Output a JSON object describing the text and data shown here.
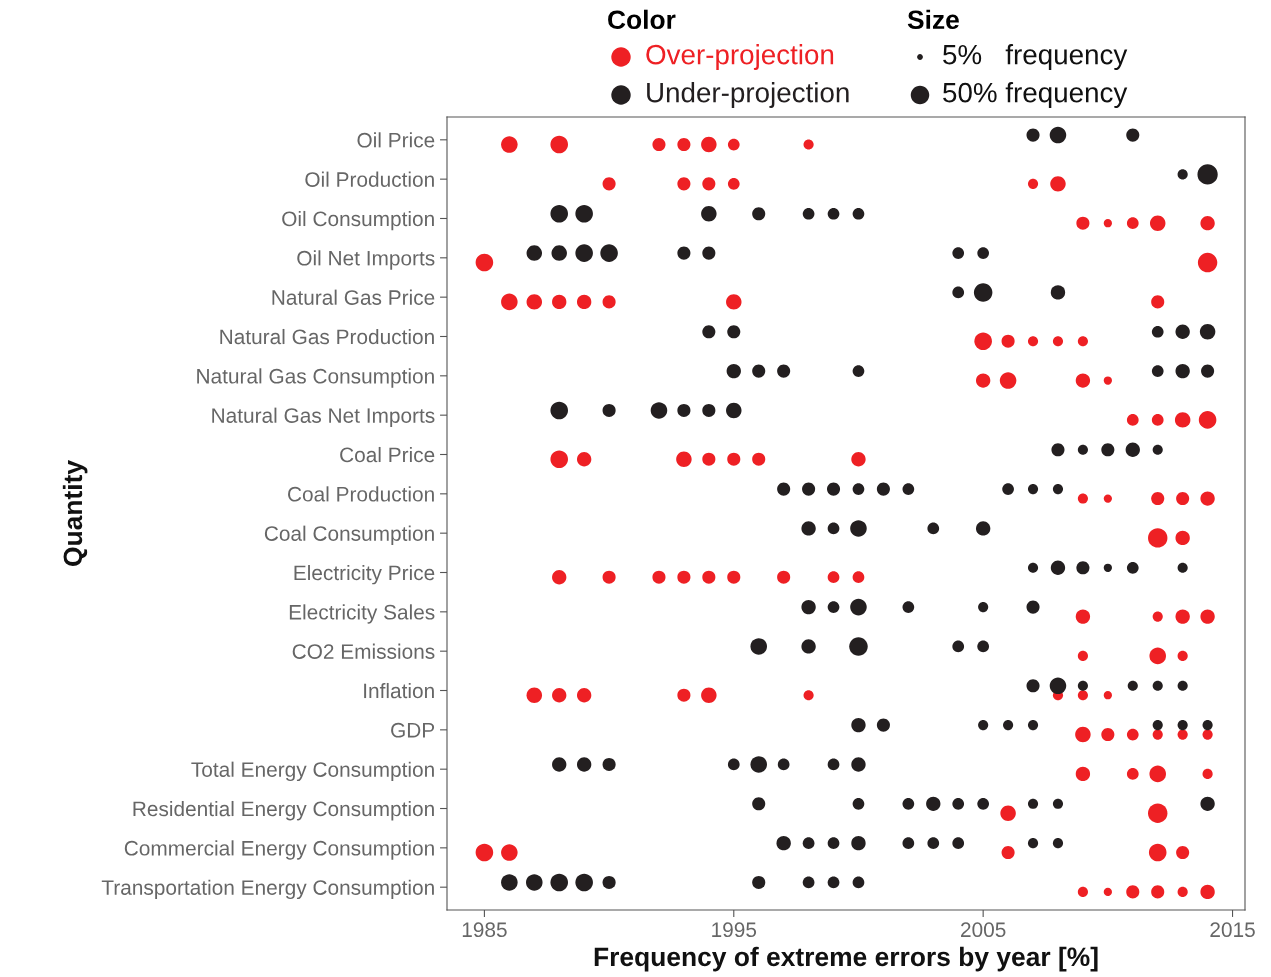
{
  "chart_data": {
    "type": "bubble",
    "xlabel": "Frequency of extreme errors by year [%]",
    "ylabel": "Quantity",
    "legend": "top",
    "legend_title": [
      "Color",
      "Size"
    ],
    "grid": false,
    "marker": "circle",
    "size_legend": [
      {
        "value": 5,
        "label": "5%   frequency"
      },
      {
        "value": 50,
        "label": "50% frequency"
      }
    ],
    "xlim": [
      1983.5,
      2015.5
    ],
    "xticks": [
      1985,
      1995,
      2005,
      2015
    ],
    "orientation": "horizontal",
    "categories": [
      "Oil Price",
      "Oil Production",
      "Oil Consumption",
      "Oil Net Imports",
      "Natural Gas Price",
      "Natural Gas Production",
      "Natural Gas Consumption",
      "Natural Gas Net Imports",
      "Coal Price",
      "Coal Production",
      "Coal Consumption",
      "Electricity Price",
      "Electricity Sales",
      "CO2 Emissions",
      "Inflation",
      "GDP",
      "Total Energy Consumption",
      "Residential Energy Consumption",
      "Commercial Energy Consumption",
      "Transportation Energy Consumption"
    ],
    "series": [
      {
        "name": "Over-projection",
        "color": "#ee2024",
        "values": [
          1986,
          1988,
          1992,
          1993,
          1994,
          1995,
          1998,
          1990,
          1993,
          1994,
          1995,
          2007,
          2008,
          2009,
          2010,
          2011,
          2012,
          2014,
          1985,
          2014,
          1986,
          1987,
          1988,
          1989,
          1990,
          1995,
          2012,
          2005,
          2006,
          2007,
          2008,
          2009,
          2005,
          2006,
          2009,
          2010,
          2011,
          2012,
          2013,
          2014,
          1988,
          1989,
          1993,
          1994,
          1995,
          1996,
          2000,
          2009,
          2010,
          2012,
          2013,
          2014,
          2012,
          2013,
          1988,
          1990,
          1992,
          1993,
          1994,
          1995,
          1997,
          1999,
          2000,
          2009,
          2012,
          2013,
          2014,
          2009,
          2012,
          2013,
          1987,
          1988,
          1989,
          1993,
          1994,
          1998,
          2008,
          2009,
          2010,
          2009,
          2010,
          2011,
          2012,
          2013,
          2014,
          2009,
          2011,
          2012,
          2014,
          2006,
          2012,
          1985,
          1986,
          2006,
          2012,
          2013,
          2009,
          2010,
          2011,
          2012,
          2013,
          2014
        ],
        "x": [
          "Oil Price",
          "Oil Price",
          "Oil Price",
          "Oil Price",
          "Oil Price",
          "Oil Price",
          "Oil Price",
          "Oil Production",
          "Oil Production",
          "Oil Production",
          "Oil Production",
          "Oil Production",
          "Oil Production",
          "Oil Consumption",
          "Oil Consumption",
          "Oil Consumption",
          "Oil Consumption",
          "Oil Consumption",
          "Oil Net Imports",
          "Oil Net Imports",
          "Natural Gas Price",
          "Natural Gas Price",
          "Natural Gas Price",
          "Natural Gas Price",
          "Natural Gas Price",
          "Natural Gas Price",
          "Natural Gas Price",
          "Natural Gas Production",
          "Natural Gas Production",
          "Natural Gas Production",
          "Natural Gas Production",
          "Natural Gas Production",
          "Natural Gas Consumption",
          "Natural Gas Consumption",
          "Natural Gas Consumption",
          "Natural Gas Consumption",
          "Natural Gas Net Imports",
          "Natural Gas Net Imports",
          "Natural Gas Net Imports",
          "Natural Gas Net Imports",
          "Coal Price",
          "Coal Price",
          "Coal Price",
          "Coal Price",
          "Coal Price",
          "Coal Price",
          "Coal Price",
          "Coal Production",
          "Coal Production",
          "Coal Production",
          "Coal Production",
          "Coal Production",
          "Coal Consumption",
          "Coal Consumption",
          "Electricity Price",
          "Electricity Price",
          "Electricity Price",
          "Electricity Price",
          "Electricity Price",
          "Electricity Price",
          "Electricity Price",
          "Electricity Price",
          "Electricity Price",
          "Electricity Sales",
          "Electricity Sales",
          "Electricity Sales",
          "Electricity Sales",
          "CO2 Emissions",
          "CO2 Emissions",
          "CO2 Emissions",
          "Inflation",
          "Inflation",
          "Inflation",
          "Inflation",
          "Inflation",
          "Inflation",
          "Inflation",
          "Inflation",
          "Inflation",
          "GDP",
          "GDP",
          "GDP",
          "GDP",
          "GDP",
          "GDP",
          "Total Energy Consumption",
          "Total Energy Consumption",
          "Total Energy Consumption",
          "Total Energy Consumption",
          "Residential Energy Consumption",
          "Residential Energy Consumption",
          "Commercial Energy Consumption",
          "Commercial Energy Consumption",
          "Commercial Energy Consumption",
          "Commercial Energy Consumption",
          "Commercial Energy Consumption",
          "Transportation Energy Consumption",
          "Transportation Energy Consumption",
          "Transportation Energy Consumption",
          "Transportation Energy Consumption",
          "Transportation Energy Consumption",
          "Transportation Energy Consumption"
        ],
        "sizes": [
          40,
          45,
          25,
          25,
          35,
          20,
          15,
          25,
          25,
          25,
          20,
          15,
          35,
          25,
          10,
          20,
          35,
          30,
          45,
          55,
          40,
          35,
          30,
          30,
          25,
          35,
          25,
          45,
          25,
          15,
          15,
          15,
          30,
          40,
          30,
          10,
          20,
          20,
          35,
          45,
          45,
          30,
          35,
          25,
          25,
          25,
          30,
          15,
          10,
          25,
          25,
          30,
          55,
          30,
          30,
          25,
          25,
          25,
          25,
          25,
          25,
          20,
          20,
          30,
          15,
          30,
          30,
          15,
          40,
          15,
          35,
          30,
          30,
          25,
          35,
          15,
          15,
          15,
          10,
          35,
          25,
          20,
          15,
          15,
          15,
          30,
          20,
          40,
          15,
          35,
          55,
          45,
          40,
          25,
          45,
          25,
          15,
          10,
          25,
          25,
          15,
          30
        ]
      },
      {
        "name": "Under-projection",
        "color": "#231f20",
        "values": [
          2007,
          2008,
          2011,
          2013,
          2014,
          1988,
          1989,
          1994,
          1996,
          1998,
          1999,
          2000,
          1987,
          1988,
          1989,
          1990,
          1993,
          1994,
          2004,
          2005,
          2004,
          2005,
          2008,
          1994,
          1995,
          2012,
          2013,
          2014,
          1995,
          1996,
          1997,
          2000,
          2012,
          2013,
          2014,
          1988,
          1990,
          1992,
          1993,
          1994,
          1995,
          2008,
          2009,
          2010,
          2011,
          2012,
          1997,
          1998,
          1999,
          2000,
          2001,
          2002,
          2006,
          2007,
          2008,
          1998,
          1999,
          2000,
          2003,
          2005,
          2007,
          2008,
          2009,
          2010,
          2011,
          2013,
          1998,
          1999,
          2000,
          2002,
          2005,
          2007,
          1996,
          1998,
          2000,
          2004,
          2005,
          2007,
          2008,
          2009,
          2011,
          2012,
          2013,
          2000,
          2001,
          2005,
          2006,
          2007,
          2012,
          2013,
          2014,
          1988,
          1989,
          1990,
          1995,
          1996,
          1997,
          1999,
          2000,
          1996,
          2000,
          2002,
          2003,
          2004,
          2005,
          2007,
          2008,
          2014,
          1997,
          1998,
          1999,
          2000,
          2002,
          2003,
          2004,
          2007,
          2008,
          1986,
          1987,
          1988,
          1989,
          1990,
          1996,
          1998,
          1999,
          2000
        ],
        "x": [
          "Oil Price",
          "Oil Price",
          "Oil Price",
          "Oil Production",
          "Oil Production",
          "Oil Consumption",
          "Oil Consumption",
          "Oil Consumption",
          "Oil Consumption",
          "Oil Consumption",
          "Oil Consumption",
          "Oil Consumption",
          "Oil Net Imports",
          "Oil Net Imports",
          "Oil Net Imports",
          "Oil Net Imports",
          "Oil Net Imports",
          "Oil Net Imports",
          "Oil Net Imports",
          "Oil Net Imports",
          "Natural Gas Price",
          "Natural Gas Price",
          "Natural Gas Price",
          "Natural Gas Production",
          "Natural Gas Production",
          "Natural Gas Production",
          "Natural Gas Production",
          "Natural Gas Production",
          "Natural Gas Consumption",
          "Natural Gas Consumption",
          "Natural Gas Consumption",
          "Natural Gas Consumption",
          "Natural Gas Consumption",
          "Natural Gas Consumption",
          "Natural Gas Consumption",
          "Natural Gas Net Imports",
          "Natural Gas Net Imports",
          "Natural Gas Net Imports",
          "Natural Gas Net Imports",
          "Natural Gas Net Imports",
          "Natural Gas Net Imports",
          "Coal Price",
          "Coal Price",
          "Coal Price",
          "Coal Price",
          "Coal Price",
          "Coal Production",
          "Coal Production",
          "Coal Production",
          "Coal Production",
          "Coal Production",
          "Coal Production",
          "Coal Production",
          "Coal Production",
          "Coal Production",
          "Coal Consumption",
          "Coal Consumption",
          "Coal Consumption",
          "Coal Consumption",
          "Coal Consumption",
          "Electricity Price",
          "Electricity Price",
          "Electricity Price",
          "Electricity Price",
          "Electricity Price",
          "Electricity Price",
          "Electricity Sales",
          "Electricity Sales",
          "Electricity Sales",
          "Electricity Sales",
          "Electricity Sales",
          "Electricity Sales",
          "CO2 Emissions",
          "CO2 Emissions",
          "CO2 Emissions",
          "CO2 Emissions",
          "CO2 Emissions",
          "Inflation",
          "Inflation",
          "Inflation",
          "Inflation",
          "Inflation",
          "Inflation",
          "GDP",
          "GDP",
          "GDP",
          "GDP",
          "GDP",
          "GDP",
          "GDP",
          "GDP",
          "Total Energy Consumption",
          "Total Energy Consumption",
          "Total Energy Consumption",
          "Total Energy Consumption",
          "Total Energy Consumption",
          "Total Energy Consumption",
          "Total Energy Consumption",
          "Total Energy Consumption",
          "Residential Energy Consumption",
          "Residential Energy Consumption",
          "Residential Energy Consumption",
          "Residential Energy Consumption",
          "Residential Energy Consumption",
          "Residential Energy Consumption",
          "Residential Energy Consumption",
          "Residential Energy Consumption",
          "Residential Energy Consumption",
          "Commercial Energy Consumption",
          "Commercial Energy Consumption",
          "Commercial Energy Consumption",
          "Commercial Energy Consumption",
          "Commercial Energy Consumption",
          "Commercial Energy Consumption",
          "Commercial Energy Consumption",
          "Commercial Energy Consumption",
          "Commercial Energy Consumption",
          "Transportation Energy Consumption",
          "Transportation Energy Consumption",
          "Transportation Energy Consumption",
          "Transportation Energy Consumption",
          "Transportation Energy Consumption",
          "Transportation Energy Consumption",
          "Transportation Energy Consumption",
          "Transportation Energy Consumption",
          "Transportation Energy Consumption"
        ],
        "sizes": [
          25,
          40,
          25,
          15,
          60,
          45,
          45,
          35,
          25,
          20,
          20,
          20,
          35,
          35,
          45,
          45,
          25,
          25,
          20,
          20,
          20,
          50,
          30,
          25,
          25,
          20,
          30,
          35,
          30,
          25,
          25,
          20,
          20,
          30,
          25,
          45,
          25,
          40,
          25,
          25,
          35,
          25,
          15,
          25,
          30,
          15,
          25,
          25,
          25,
          20,
          25,
          20,
          20,
          15,
          15,
          30,
          20,
          40,
          20,
          30,
          15,
          30,
          25,
          10,
          20,
          15,
          30,
          20,
          40,
          20,
          15,
          25,
          40,
          30,
          50,
          20,
          20,
          25,
          40,
          15,
          15,
          15,
          15,
          30,
          25,
          15,
          15,
          15,
          15,
          15,
          15,
          30,
          30,
          25,
          20,
          40,
          20,
          20,
          30,
          25,
          20,
          20,
          30,
          20,
          20,
          15,
          15,
          30,
          30,
          20,
          20,
          30,
          20,
          20,
          20,
          15,
          15,
          40,
          40,
          45,
          45,
          25,
          25,
          20,
          20,
          20
        ]
      }
    ]
  }
}
